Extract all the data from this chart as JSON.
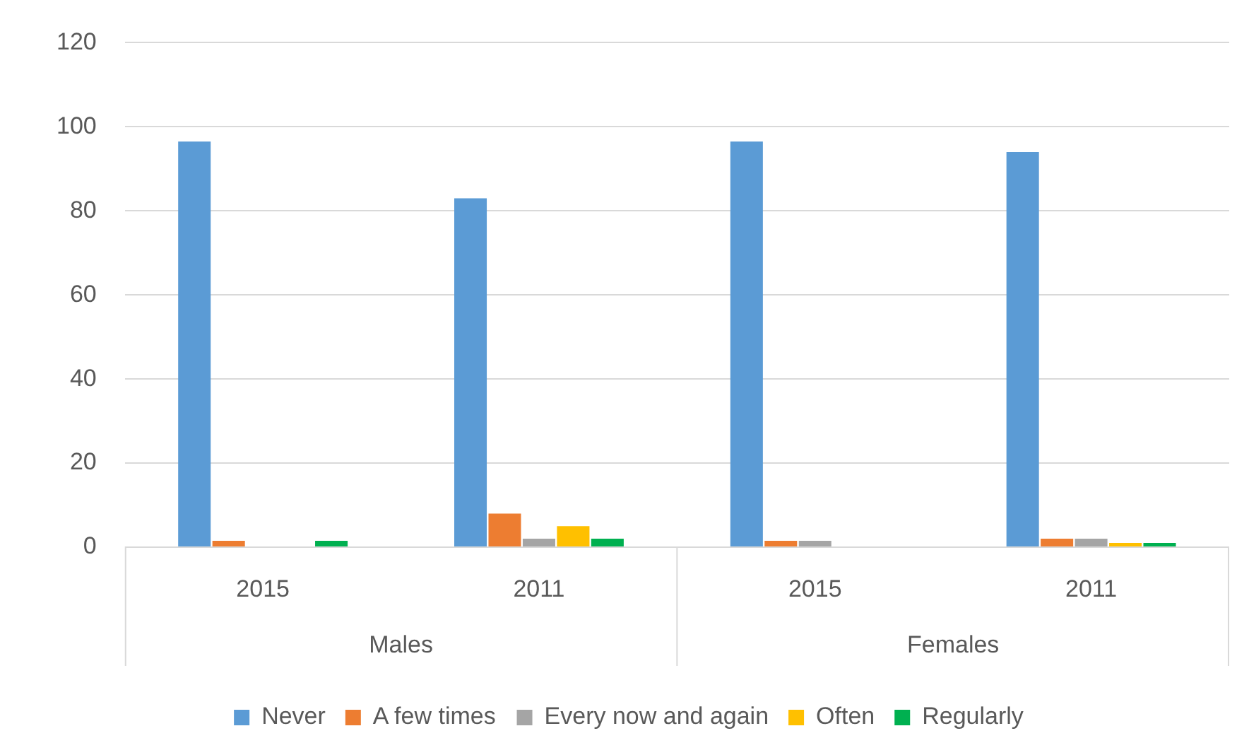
{
  "chart_data": {
    "type": "bar",
    "categories": [
      "2015",
      "2011",
      "2015",
      "2011"
    ],
    "annotations": [
      "Males",
      "Females"
    ],
    "series": [
      {
        "name": "Never",
        "color": "#5b9bd5",
        "values": [
          96.5,
          83,
          96.5,
          94
        ]
      },
      {
        "name": "A few times",
        "color": "#ed7d31",
        "values": [
          1.5,
          8,
          1.5,
          2
        ]
      },
      {
        "name": "Every now and again",
        "color": "#a5a5a5",
        "values": [
          null,
          2,
          1.5,
          2
        ]
      },
      {
        "name": "Often",
        "color": "#ffc000",
        "values": [
          null,
          5,
          null,
          1
        ]
      },
      {
        "name": "Regularly",
        "color": "#00b050",
        "values": [
          1.5,
          2,
          null,
          1
        ]
      }
    ],
    "ylim": [
      0,
      120
    ],
    "yticks": [
      0,
      20,
      40,
      60,
      80,
      100,
      120
    ],
    "grid": "y",
    "legend": "bottom"
  }
}
